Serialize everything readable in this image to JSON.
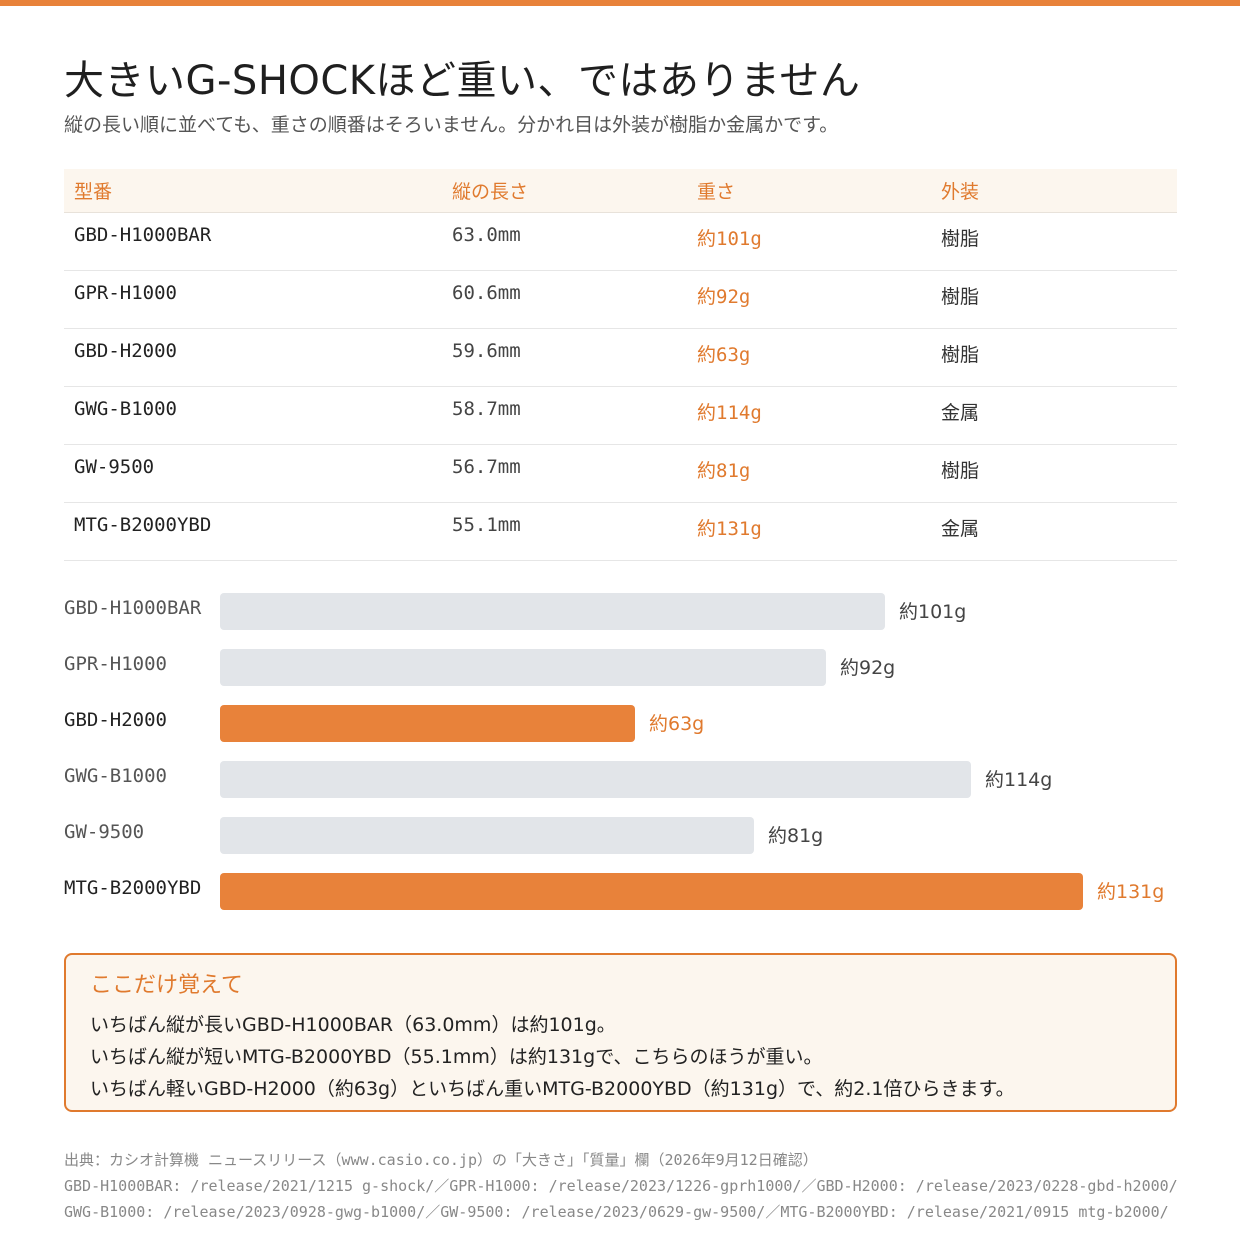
{
  "title": "大きいG-SHOCKほど重い、ではありません",
  "subtitle": "縦の長い順に並べても、重さの順番はそろいません。分かれ目は外装が樹脂か金属かです。",
  "table": {
    "headers": [
      "型番",
      "縦の長さ",
      "重さ",
      "外装"
    ],
    "rows": [
      {
        "model": "GBD-H1000BAR",
        "length": "63.0mm",
        "weight": "約101g",
        "material": "樹脂"
      },
      {
        "model": "GPR-H1000",
        "length": "60.6mm",
        "weight": "約92g",
        "material": "樹脂"
      },
      {
        "model": "GBD-H2000",
        "length": "59.6mm",
        "weight": "約63g",
        "material": "樹脂"
      },
      {
        "model": "GWG-B1000",
        "length": "58.7mm",
        "weight": "約114g",
        "material": "金属"
      },
      {
        "model": "GW-9500",
        "length": "56.7mm",
        "weight": "約81g",
        "material": "樹脂"
      },
      {
        "model": "MTG-B2000YBD",
        "length": "55.1mm",
        "weight": "約131g",
        "material": "金属"
      }
    ]
  },
  "chart_data": {
    "type": "bar",
    "orientation": "horizontal",
    "categories": [
      "GBD-H1000BAR",
      "GPR-H1000",
      "GBD-H2000",
      "GWG-B1000",
      "GW-9500",
      "MTG-B2000YBD"
    ],
    "values": [
      101,
      92,
      63,
      114,
      81,
      131
    ],
    "value_labels": [
      "約101g",
      "約92g",
      "約63g",
      "約114g",
      "約81g",
      "約131g"
    ],
    "highlighted": [
      false,
      false,
      true,
      false,
      false,
      true
    ],
    "xlim": [
      0,
      131
    ],
    "grid": false,
    "colors": {
      "default": "#e2e5e9",
      "highlight": "#e8823a"
    }
  },
  "note": {
    "title": "ここだけ覚えて",
    "lines": [
      "いちばん縦が長いGBD-H1000BAR（63.0mm）は約101g。",
      "いちばん縦が短いMTG-B2000YBD（55.1mm）は約131gで、こちらのほうが重い。",
      "いちばん軽いGBD-H2000（約63g）といちばん重いMTG-B2000YBD（約131g）で、約2.1倍ひらきます。"
    ]
  },
  "sources": [
    "出典：カシオ計算機 ニュースリリース（www.casio.co.jp）の「大きさ」「質量」欄（2026年9月12日確認）",
    "GBD-H1000BAR: /release/2021/1215 g-shock/／GPR-H1000: /release/2023/1226-gprh1000/／GBD-H2000: /release/2023/0228-gbd-h2000/",
    "GWG-B1000: /release/2023/0928-gwg-b1000/／GW-9500: /release/2023/0629-gw-9500/／MTG-B2000YBD: /release/2021/0915 mtg-b2000/"
  ],
  "colors": {
    "accent": "#e8823a",
    "accent_text": "#e07a2e",
    "bar_muted": "#e2e5e9",
    "note_bg": "#fcf6ee"
  }
}
